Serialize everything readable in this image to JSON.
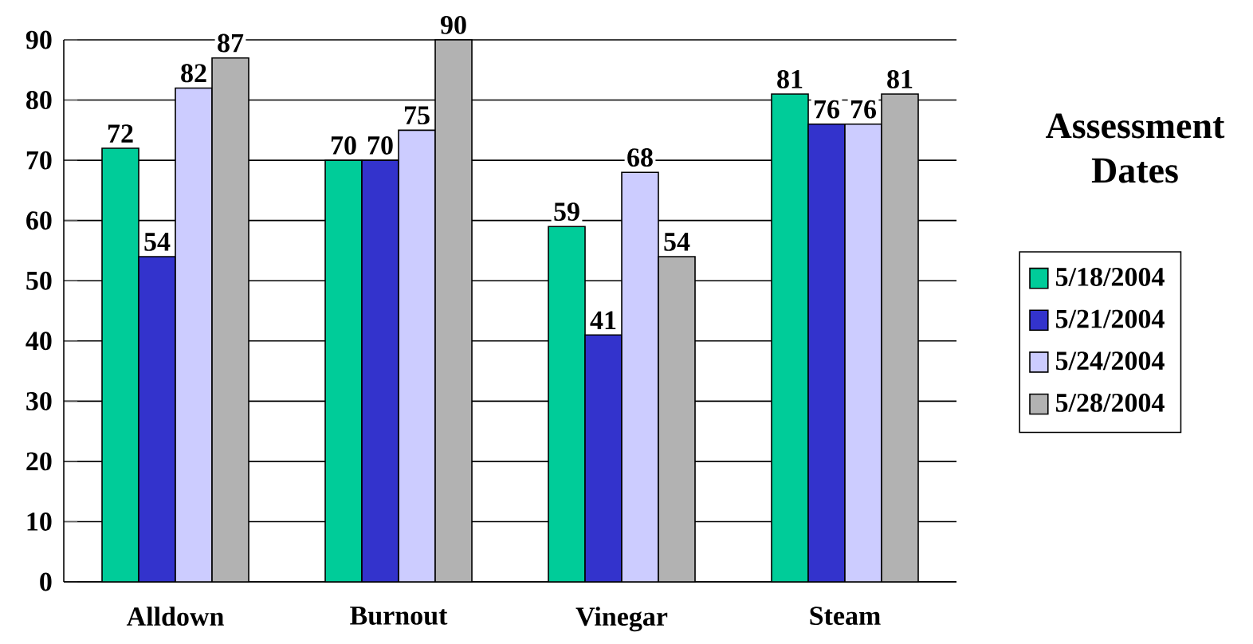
{
  "chart_data": {
    "type": "bar",
    "legend_title": "Assessment Dates",
    "categories": [
      "Alldown",
      "Burnout",
      "Vinegar",
      "Steam"
    ],
    "series": [
      {
        "name": "5/18/2004",
        "color": "#00cc99",
        "values": [
          72,
          70,
          59,
          81
        ]
      },
      {
        "name": "5/21/2004",
        "color": "#3333cc",
        "values": [
          54,
          70,
          41,
          76
        ]
      },
      {
        "name": "5/24/2004",
        "color": "#ccccff",
        "values": [
          82,
          75,
          68,
          76
        ]
      },
      {
        "name": "5/28/2004",
        "color": "#b2b2b2",
        "values": [
          87,
          90,
          54,
          81
        ]
      }
    ],
    "ylim": [
      0,
      90
    ],
    "yticks": [
      0,
      10,
      20,
      30,
      40,
      50,
      60,
      70,
      80,
      90
    ],
    "grid": "y",
    "legend": "right",
    "data_labels": true
  }
}
